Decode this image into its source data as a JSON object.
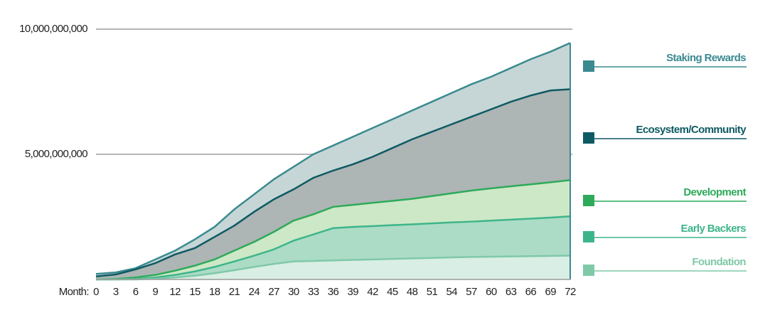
{
  "chart_data": {
    "type": "stacked-area",
    "x_label": "Month:",
    "x": [
      0,
      3,
      6,
      9,
      12,
      15,
      18,
      21,
      24,
      27,
      30,
      33,
      36,
      39,
      42,
      45,
      48,
      51,
      54,
      57,
      60,
      63,
      66,
      69,
      72
    ],
    "xlim": [
      0,
      72
    ],
    "xticks": [
      0,
      3,
      6,
      9,
      12,
      15,
      18,
      21,
      24,
      27,
      30,
      33,
      36,
      39,
      42,
      45,
      48,
      51,
      54,
      57,
      60,
      63,
      66,
      69,
      72
    ],
    "ylim": [
      0,
      10000000000
    ],
    "yticks": [
      {
        "value": 5000000000,
        "label": "5,000,000,000"
      },
      {
        "value": 10000000000,
        "label": "10,000,000,000"
      }
    ],
    "grid": true,
    "legend": "right",
    "series": [
      {
        "name": "Foundation",
        "color": "#7fc9a8",
        "fill": "#d9eee4",
        "values": [
          0,
          0,
          0,
          30000000,
          80000000,
          150000000,
          250000000,
          370000000,
          500000000,
          620000000,
          720000000,
          740000000,
          760000000,
          780000000,
          800000000,
          820000000,
          840000000,
          860000000,
          880000000,
          900000000,
          910000000,
          920000000,
          930000000,
          940000000,
          950000000
        ]
      },
      {
        "name": "Early Backers",
        "color": "#3db58a",
        "fill": "#acdcc6",
        "values": [
          0,
          0,
          20000000,
          50000000,
          100000000,
          170000000,
          250000000,
          350000000,
          450000000,
          580000000,
          830000000,
          1060000000,
          1290000000,
          1320000000,
          1330000000,
          1350000000,
          1360000000,
          1380000000,
          1400000000,
          1410000000,
          1440000000,
          1470000000,
          1500000000,
          1530000000,
          1570000000
        ]
      },
      {
        "name": "Development",
        "color": "#2eaa5a",
        "fill": "#cde8c6",
        "values": [
          0,
          20000000,
          60000000,
          100000000,
          170000000,
          230000000,
          300000000,
          430000000,
          550000000,
          700000000,
          800000000,
          800000000,
          850000000,
          880000000,
          930000000,
          970000000,
          1020000000,
          1090000000,
          1160000000,
          1240000000,
          1290000000,
          1330000000,
          1370000000,
          1410000000,
          1450000000
        ]
      },
      {
        "name": "Ecosystem/Community",
        "color": "#0e5a63",
        "fill": "#adb5b5",
        "values": [
          120000000,
          180000000,
          320000000,
          470000000,
          650000000,
          700000000,
          900000000,
          1000000000,
          1200000000,
          1300000000,
          1250000000,
          1460000000,
          1450000000,
          1620000000,
          1840000000,
          2110000000,
          2380000000,
          2570000000,
          2760000000,
          2950000000,
          3160000000,
          3380000000,
          3550000000,
          3670000000,
          3630000000
        ]
      },
      {
        "name": "Staking Rewards",
        "color": "#3a8a8f",
        "fill": "#c6d6d6",
        "values": [
          100000000,
          80000000,
          50000000,
          150000000,
          150000000,
          350000000,
          400000000,
          650000000,
          700000000,
          800000000,
          900000000,
          940000000,
          1000000000,
          1100000000,
          1150000000,
          1150000000,
          1150000000,
          1200000000,
          1250000000,
          1300000000,
          1300000000,
          1350000000,
          1450000000,
          1550000000,
          1850000000
        ]
      }
    ]
  }
}
